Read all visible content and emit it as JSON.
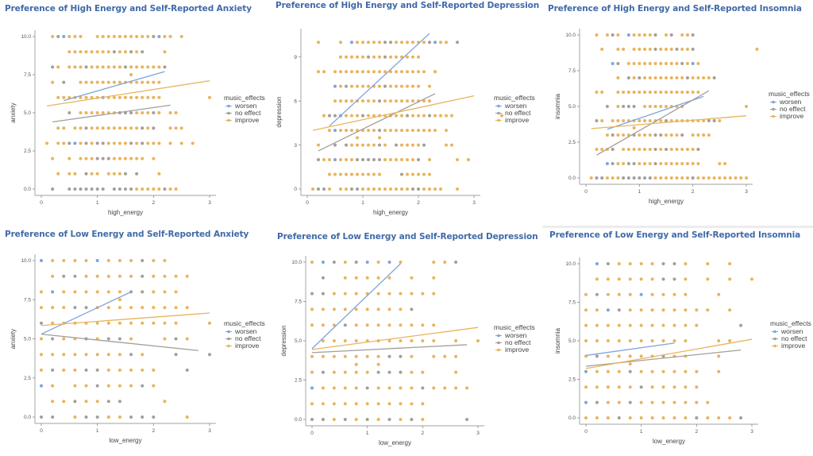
{
  "colors": {
    "worsen": "#7fa3dd",
    "no_effect": "#a39e9a",
    "improve": "#e8b45c",
    "title": "#3f6aa8"
  },
  "legend": {
    "title": "music_effects",
    "items": [
      {
        "key": "b",
        "label": "worsen"
      },
      {
        "key": "g",
        "label": "no effect"
      },
      {
        "key": "o",
        "label": "improve"
      }
    ]
  },
  "chart_data": [
    {
      "type": "scatter",
      "title": "Preference of High Energy and Self-Reported Anxiety",
      "xlabel": "high_energy",
      "ylabel": "anxiety",
      "xlim": [
        0,
        3
      ],
      "ylim": [
        0,
        10
      ],
      "xticks": [
        0,
        1,
        2,
        3
      ],
      "xtick_labels": [
        "0",
        "1",
        "2",
        "3"
      ],
      "yticks": [
        0,
        2.5,
        5,
        7.5,
        10
      ],
      "ytick_labels": [
        "0.0",
        "2.5",
        "5.0",
        "7.5",
        "10.0"
      ],
      "x_step": 0.1,
      "rows": [
        {
          "y": 10,
          "pts": "..ogbooo..oooooooooogboo.o"
        },
        {
          "y": 9,
          "pts": ".....oooooooogoogog...o"
        },
        {
          "y": 8,
          "pts": "..go.ooogoooooogoooooog"
        },
        {
          "y": 7.5,
          "pts": "................o"
        },
        {
          "y": 7,
          "pts": "..o.g..ooooooooooooooo"
        },
        {
          "y": 6,
          "pts": "...oooooooogoooooooooo........o"
        },
        {
          "y": 5,
          "pts": ".....g.ooooooogggooogo.oo"
        },
        {
          "y": 4,
          "pts": "...oo.oogooooooooogog..ooo"
        },
        {
          "y": 3,
          "pts": ".o.oogbogoggoooogogooo.o.o.o"
        },
        {
          "y": 2,
          "pts": "..o..o.ooogggoooooo.o"
        },
        {
          "y": 1,
          "pts": "...o.oo.goo.ooog.g...o"
        },
        {
          "y": 0,
          "pts": "..g..ggggggg.ggggooooogoo"
        }
      ],
      "trend_lines": [
        {
          "group": "worsen",
          "x": [
            0.4,
            2.2
          ],
          "y": [
            5.8,
            7.7
          ]
        },
        {
          "group": "no effect",
          "x": [
            0.2,
            2.3
          ],
          "y": [
            4.4,
            5.5
          ]
        },
        {
          "group": "improve",
          "x": [
            0.1,
            3.0
          ],
          "y": [
            5.45,
            7.1
          ]
        }
      ]
    },
    {
      "type": "scatter",
      "title": "Preference of High Energy and Self-Reported Depression",
      "xlabel": "high_energy",
      "ylabel": "depression",
      "xlim": [
        0,
        3
      ],
      "ylim": [
        0,
        10.5
      ],
      "xticks": [
        0,
        1,
        2,
        3
      ],
      "xtick_labels": [
        "0",
        "1",
        "2",
        "3"
      ],
      "yticks": [
        0,
        3,
        6,
        9
      ],
      "ytick_labels": [
        "0",
        "3",
        "6",
        "9"
      ],
      "x_step": 0.1,
      "rows": [
        {
          "y": 10,
          "pts": "..o...o.boooooggoooooogboo.g"
        },
        {
          "y": 9,
          "pts": "......ooooogoogoooooo"
        },
        {
          "y": 8,
          "pts": "..oo.ooooooooooooooooo.o"
        },
        {
          "y": 7,
          "pts": ".....bogoooooogoooooo.o"
        },
        {
          "y": 6,
          "pts": ".....oooooooogooooooooo"
        },
        {
          "y": 5,
          "pts": "...oggbooogooooooogooogoooo........o"
        },
        {
          "y": 4,
          "pts": "....obooooooogoooooooooo.o"
        },
        {
          "y": 3.5,
          "pts": ".........o...o"
        },
        {
          "y": 3,
          "pts": "..o..g.gooooogo.goooog...oo"
        },
        {
          "y": 2,
          "pts": "..goobooogggggoooooog.o....o.o"
        },
        {
          "y": 1,
          "pts": "....oooooooooo...gooooo"
        },
        {
          "y": 0,
          "pts": ".oggo.ooggoooooooooggoooo..o"
        }
      ],
      "trend_lines": [
        {
          "group": "worsen",
          "x": [
            0.4,
            2.2
          ],
          "y": [
            4.3,
            10.6
          ]
        },
        {
          "group": "no effect",
          "x": [
            0.2,
            2.3
          ],
          "y": [
            2.6,
            6.5
          ]
        },
        {
          "group": "improve",
          "x": [
            0.1,
            3.0
          ],
          "y": [
            4.0,
            6.35
          ]
        }
      ]
    },
    {
      "type": "scatter",
      "title": "Preference of High Energy and Self-Reported Insomnia",
      "xlabel": "high_energy",
      "ylabel": "insomnia",
      "xlim": [
        0,
        3
      ],
      "ylim": [
        0,
        10
      ],
      "xticks": [
        0,
        1,
        2,
        3
      ],
      "xtick_labels": [
        "0",
        "1",
        "2",
        "3"
      ],
      "yticks": [
        0,
        2.5,
        5,
        7.5,
        10
      ],
      "ytick_labels": [
        "0.0",
        "2.5",
        "5.0",
        "7.5",
        "10.0"
      ],
      "x_step": 0.1,
      "rows": [
        {
          "y": 10,
          "pts": "..o.ogo.boooog.og.oog"
        },
        {
          "y": 9,
          "pts": "...o..oo.oooogooogoog...........o"
        },
        {
          "y": 8,
          "pts": ".....bg.oooooooooogobo"
        },
        {
          "y": 7,
          "pts": "......o.gogoooooooogoooog"
        },
        {
          "y": 6,
          "pts": "..oo..oooooooooooooooo"
        },
        {
          "y": 5,
          "pts": "....g.oggg.oooooooo...........o"
        },
        {
          "y": 4,
          "pts": "..go.oooooooooogoooooooggo"
        },
        {
          "y": 3.5,
          "pts": ".........o"
        },
        {
          "y": 3,
          "pts": "....ogooogoooggooog.oooo"
        },
        {
          "y": 2,
          "pts": "..ooog.oooooogogooooog"
        },
        {
          "y": 1,
          "pts": "....bgooggooogoooooooo...oo"
        },
        {
          "y": 0,
          "pts": ".oggoooggggggooooooogoooooooooo"
        }
      ],
      "trend_lines": [
        {
          "group": "worsen",
          "x": [
            0.4,
            2.2
          ],
          "y": [
            3.4,
            5.7
          ]
        },
        {
          "group": "no effect",
          "x": [
            0.2,
            2.3
          ],
          "y": [
            1.6,
            6.1
          ]
        },
        {
          "group": "improve",
          "x": [
            0.1,
            3.0
          ],
          "y": [
            3.45,
            4.35
          ]
        }
      ]
    },
    {
      "type": "scatter",
      "title": "Preference of Low Energy and Self-Reported Anxiety",
      "xlabel": "low_energy",
      "ylabel": "anxiety",
      "xlim": [
        0,
        3
      ],
      "ylim": [
        0,
        10
      ],
      "xticks": [
        0,
        1,
        2,
        3
      ],
      "xtick_labels": [
        "0",
        "1",
        "2",
        "3"
      ],
      "yticks": [
        0,
        2.5,
        5,
        7.5,
        10
      ],
      "ytick_labels": [
        "0.0",
        "2.5",
        "5.0",
        "7.5",
        "10.0"
      ],
      "x_step": 0.2,
      "rows": [
        {
          "y": 10,
          "pts": "boooobooogoo"
        },
        {
          "y": 9,
          "pts": ".oggooooogoooo"
        },
        {
          "y": 8,
          "pts": "obooooooggooo"
        },
        {
          "y": 7.5,
          "pts": ".......o"
        },
        {
          "y": 7,
          "pts": "oooggooooooooo"
        },
        {
          "y": 6,
          "pts": "goooooooooooo..o"
        },
        {
          "y": 5,
          "pts": "ogoogoggo..ogo"
        },
        {
          "y": 4,
          "pts": "oooooooogo..g..g"
        },
        {
          "y": 3,
          "pts": "ogooggooooo..g"
        },
        {
          "y": 2,
          "pts": "bo.oogooogo"
        },
        {
          "y": 1,
          "pts": ".oogoogg...o"
        },
        {
          "y": 0,
          "pts": "gg.oggooggg..o"
        }
      ],
      "trend_lines": [
        {
          "group": "worsen",
          "x": [
            0.0,
            1.6
          ],
          "y": [
            5.3,
            8.0
          ]
        },
        {
          "group": "no effect",
          "x": [
            0.0,
            2.8
          ],
          "y": [
            5.3,
            4.25
          ]
        },
        {
          "group": "improve",
          "x": [
            0.0,
            3.0
          ],
          "y": [
            5.85,
            6.65
          ]
        }
      ]
    },
    {
      "type": "scatter",
      "title": "Preference of Low Energy and Self-Reported Depression",
      "xlabel": "low_energy",
      "ylabel": "depression",
      "xlim": [
        0,
        3
      ],
      "ylim": [
        0,
        10
      ],
      "xticks": [
        0,
        1,
        2,
        3
      ],
      "xtick_labels": [
        "0",
        "1",
        "2",
        "3"
      ],
      "yticks": [
        0,
        2.5,
        5,
        7.5,
        10
      ],
      "ytick_labels": [
        "0.0",
        "2.5",
        "5.0",
        "7.5",
        "10.0"
      ],
      "x_step": 0.2,
      "rows": [
        {
          "y": 10,
          "pts": "obgogbobo..oog"
        },
        {
          "y": 9,
          "pts": ".g.ooooo.o.o"
        },
        {
          "y": 8,
          "pts": "ggoooooooooo"
        },
        {
          "y": 7,
          "pts": "ooooooooog"
        },
        {
          "y": 6,
          "pts": "ooogoooooooo"
        },
        {
          "y": 5,
          "pts": ".ooooooooooo.o.o"
        },
        {
          "y": 4,
          "pts": "oooooooggo.ooo"
        },
        {
          "y": 3.5,
          "pts": "....o.o"
        },
        {
          "y": 3,
          "pts": "ogoooogggoo..o"
        },
        {
          "y": 2,
          "pts": "boooogoooogoooo"
        },
        {
          "y": 1,
          "pts": "ooooooooooo"
        },
        {
          "y": 0,
          "pts": "ggogogogogo...g"
        }
      ],
      "trend_lines": [
        {
          "group": "worsen",
          "x": [
            0.0,
            1.6
          ],
          "y": [
            4.5,
            9.9
          ]
        },
        {
          "group": "no effect",
          "x": [
            0.0,
            2.8
          ],
          "y": [
            4.25,
            4.75
          ]
        },
        {
          "group": "improve",
          "x": [
            0.0,
            3.0
          ],
          "y": [
            4.45,
            5.85
          ]
        }
      ]
    },
    {
      "type": "scatter",
      "title": "Preference of Low Energy and Self-Reported Insomnia",
      "xlabel": "low_energy",
      "ylabel": "insomnia",
      "xlim": [
        0,
        3
      ],
      "ylim": [
        0,
        10
      ],
      "xticks": [
        0,
        1,
        2,
        3
      ],
      "xtick_labels": [
        "0",
        "1",
        "2",
        "3"
      ],
      "yticks": [
        0,
        2.5,
        5,
        7.5,
        10
      ],
      "ytick_labels": [
        "0.0",
        "2.5",
        "5.0",
        "7.5",
        "10.0"
      ],
      "x_step": 0.2,
      "rows": [
        {
          "y": 10,
          "pts": ".bgooooggo.o.o"
        },
        {
          "y": 9,
          "pts": ".ooooooggo.o.o.o"
        },
        {
          "y": 8,
          "pts": "ogoooboooo..o"
        },
        {
          "y": 7,
          "pts": "oobgoooooooo.o"
        },
        {
          "y": 6,
          "pts": "ooooooooooo...g"
        },
        {
          "y": 5,
          "pts": "oooooooooo..oo"
        },
        {
          "y": 4,
          "pts": "ogooooogoo..o"
        },
        {
          "y": 3.5,
          "pts": "....o"
        },
        {
          "y": 3,
          "pts": "booogoooooo.o"
        },
        {
          "y": 2,
          "pts": "ooooogooooo"
        },
        {
          "y": 1,
          "pts": "bgoogooooooo"
        },
        {
          "y": 0,
          "pts": "ooogoooooogooog"
        }
      ],
      "trend_lines": [
        {
          "group": "worsen",
          "x": [
            0.0,
            1.6
          ],
          "y": [
            4.05,
            4.85
          ]
        },
        {
          "group": "no effect",
          "x": [
            0.0,
            2.8
          ],
          "y": [
            3.35,
            4.4
          ]
        },
        {
          "group": "improve",
          "x": [
            0.0,
            3.0
          ],
          "y": [
            3.2,
            5.1
          ]
        }
      ]
    }
  ]
}
